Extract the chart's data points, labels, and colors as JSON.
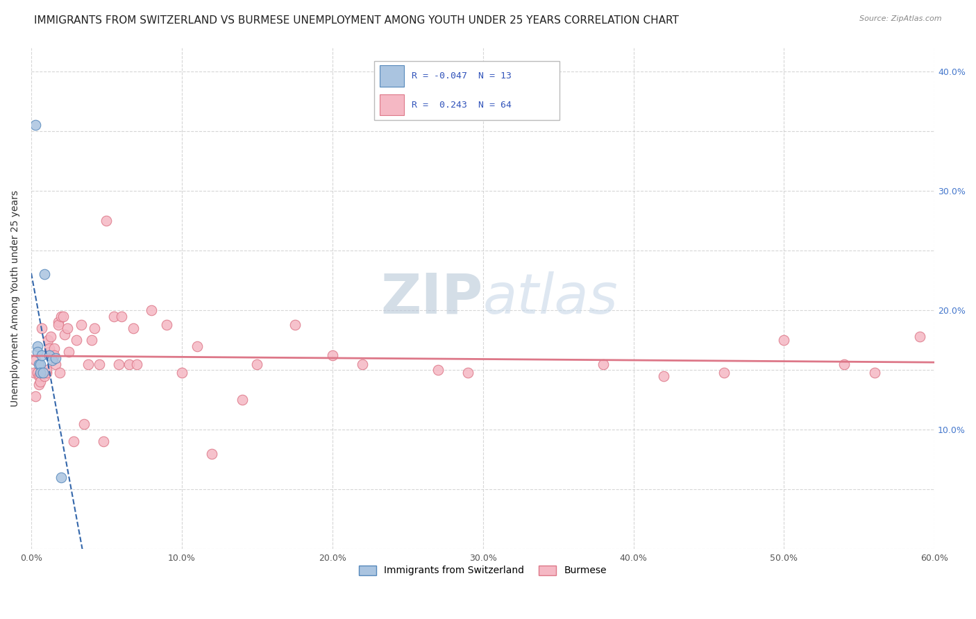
{
  "title": "IMMIGRANTS FROM SWITZERLAND VS BURMESE UNEMPLOYMENT AMONG YOUTH UNDER 25 YEARS CORRELATION CHART",
  "source": "Source: ZipAtlas.com",
  "ylabel": "Unemployment Among Youth under 25 years",
  "xlim": [
    0.0,
    0.6
  ],
  "ylim": [
    0.0,
    0.42
  ],
  "xticks": [
    0.0,
    0.1,
    0.2,
    0.3,
    0.4,
    0.5,
    0.6
  ],
  "xticklabels": [
    "0.0%",
    "10.0%",
    "20.0%",
    "30.0%",
    "40.0%",
    "50.0%",
    "60.0%"
  ],
  "yticks_left": [
    0.0,
    0.05,
    0.1,
    0.15,
    0.2,
    0.25,
    0.3,
    0.35,
    0.4
  ],
  "yticks_right": [
    0.1,
    0.2,
    0.3,
    0.4
  ],
  "ytick_right_labels": [
    "10.0%",
    "20.0%",
    "30.0%",
    "40.0%"
  ],
  "watermark_zip": "ZIP",
  "watermark_atlas": "atlas",
  "swiss_color": "#aac4e0",
  "swiss_edge": "#5588bb",
  "swiss_line_color": "#3366aa",
  "burmese_color": "#f5b8c4",
  "burmese_edge": "#dd7788",
  "burmese_line_color": "#dd7788",
  "swiss_x": [
    0.003,
    0.004,
    0.004,
    0.005,
    0.006,
    0.006,
    0.007,
    0.008,
    0.009,
    0.012,
    0.014,
    0.016,
    0.02
  ],
  "swiss_y": [
    0.355,
    0.17,
    0.165,
    0.155,
    0.155,
    0.148,
    0.162,
    0.148,
    0.23,
    0.162,
    0.158,
    0.16,
    0.06
  ],
  "burmese_x": [
    0.002,
    0.003,
    0.003,
    0.004,
    0.005,
    0.005,
    0.006,
    0.006,
    0.007,
    0.007,
    0.008,
    0.009,
    0.01,
    0.01,
    0.011,
    0.012,
    0.012,
    0.013,
    0.015,
    0.015,
    0.016,
    0.018,
    0.018,
    0.019,
    0.02,
    0.021,
    0.022,
    0.024,
    0.025,
    0.028,
    0.03,
    0.033,
    0.035,
    0.038,
    0.04,
    0.042,
    0.045,
    0.048,
    0.05,
    0.055,
    0.058,
    0.06,
    0.065,
    0.068,
    0.07,
    0.08,
    0.09,
    0.1,
    0.11,
    0.12,
    0.14,
    0.15,
    0.175,
    0.2,
    0.22,
    0.27,
    0.29,
    0.38,
    0.42,
    0.46,
    0.5,
    0.54,
    0.56,
    0.59
  ],
  "burmese_y": [
    0.148,
    0.128,
    0.158,
    0.148,
    0.138,
    0.145,
    0.145,
    0.14,
    0.148,
    0.185,
    0.148,
    0.145,
    0.148,
    0.15,
    0.175,
    0.165,
    0.168,
    0.178,
    0.168,
    0.162,
    0.155,
    0.19,
    0.188,
    0.148,
    0.195,
    0.195,
    0.18,
    0.185,
    0.165,
    0.09,
    0.175,
    0.188,
    0.105,
    0.155,
    0.175,
    0.185,
    0.155,
    0.09,
    0.275,
    0.195,
    0.155,
    0.195,
    0.155,
    0.185,
    0.155,
    0.2,
    0.188,
    0.148,
    0.17,
    0.08,
    0.125,
    0.155,
    0.188,
    0.162,
    0.155,
    0.15,
    0.148,
    0.155,
    0.145,
    0.148,
    0.175,
    0.155,
    0.148,
    0.178
  ],
  "grid_color": "#cccccc",
  "background_color": "#ffffff",
  "title_fontsize": 11,
  "axis_label_fontsize": 10,
  "tick_fontsize": 9,
  "legend_fontsize": 10,
  "watermark_fontsize": 58,
  "watermark_color_zip": "#b8c8d8",
  "watermark_color_atlas": "#c8d8e8",
  "watermark_alpha": 0.6
}
